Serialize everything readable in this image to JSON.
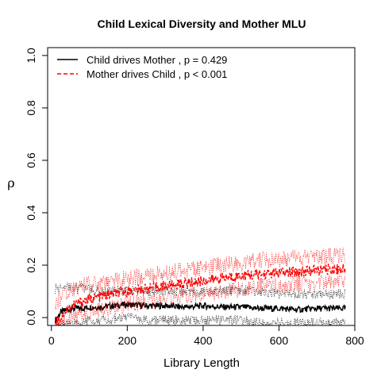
{
  "chart_data": {
    "type": "line",
    "title": "Child Lexical Diversity and Mother MLU",
    "xlabel": "Library Length",
    "ylabel": "ρ",
    "xlim": [
      -10,
      800
    ],
    "ylim": [
      -0.03,
      1.03
    ],
    "x_ticks": [
      0,
      200,
      400,
      600,
      800
    ],
    "y_ticks": [
      0.0,
      0.2,
      0.4,
      0.6,
      0.8,
      1.0
    ],
    "x_tick_labels": [
      "0",
      "200",
      "400",
      "600",
      "800"
    ],
    "y_tick_labels": [
      "0.0",
      "0.2",
      "0.4",
      "0.6",
      "0.8",
      "1.0"
    ],
    "legend_position": "top-left",
    "series": [
      {
        "name": "Child drives Mother , p = 0.429",
        "color": "#000000",
        "line_style": "solid",
        "x": [
          10,
          25,
          40,
          60,
          80,
          100,
          130,
          160,
          200,
          250,
          300,
          350,
          400,
          450,
          500,
          550,
          600,
          650,
          700,
          750,
          775
        ],
        "values": [
          -0.01,
          0.02,
          0.03,
          0.035,
          0.035,
          0.04,
          0.04,
          0.045,
          0.05,
          0.045,
          0.045,
          0.04,
          0.045,
          0.04,
          0.04,
          0.035,
          0.035,
          0.03,
          0.035,
          0.035,
          0.035
        ],
        "band": {
          "color": "#000000",
          "line_style": "dotted",
          "lower": [
            -0.03,
            -0.03,
            -0.02,
            -0.02,
            -0.02,
            -0.01,
            -0.01,
            -0.01,
            0.0,
            -0.01,
            -0.01,
            -0.01,
            -0.01,
            -0.01,
            -0.01,
            -0.02,
            -0.02,
            -0.02,
            -0.02,
            -0.02,
            -0.02
          ],
          "upper": [
            0.11,
            0.11,
            0.12,
            0.11,
            0.11,
            0.11,
            0.1,
            0.1,
            0.1,
            0.1,
            0.1,
            0.1,
            0.1,
            0.1,
            0.1,
            0.1,
            0.09,
            0.09,
            0.09,
            0.09,
            0.09
          ]
        }
      },
      {
        "name": "Mother drives Child , p < 0.001",
        "color": "#ff0000",
        "line_style": "dashed",
        "x": [
          10,
          25,
          40,
          60,
          80,
          100,
          130,
          160,
          200,
          250,
          300,
          350,
          400,
          450,
          500,
          550,
          600,
          650,
          700,
          750,
          775
        ],
        "values": [
          -0.02,
          0.0,
          0.03,
          0.05,
          0.06,
          0.07,
          0.08,
          0.09,
          0.1,
          0.11,
          0.12,
          0.13,
          0.14,
          0.15,
          0.16,
          0.165,
          0.17,
          0.175,
          0.18,
          0.185,
          0.185
        ],
        "band": {
          "color": "#ff0000",
          "line_style": "dotted",
          "lower": [
            -0.03,
            -0.03,
            -0.02,
            0.0,
            0.01,
            0.02,
            0.03,
            0.04,
            0.05,
            0.06,
            0.07,
            0.08,
            0.09,
            0.1,
            0.11,
            0.12,
            0.12,
            0.13,
            0.13,
            0.14,
            0.14
          ],
          "upper": [
            0.05,
            0.08,
            0.1,
            0.11,
            0.12,
            0.13,
            0.13,
            0.14,
            0.15,
            0.16,
            0.17,
            0.18,
            0.19,
            0.2,
            0.21,
            0.22,
            0.22,
            0.23,
            0.23,
            0.235,
            0.235
          ]
        }
      }
    ]
  }
}
